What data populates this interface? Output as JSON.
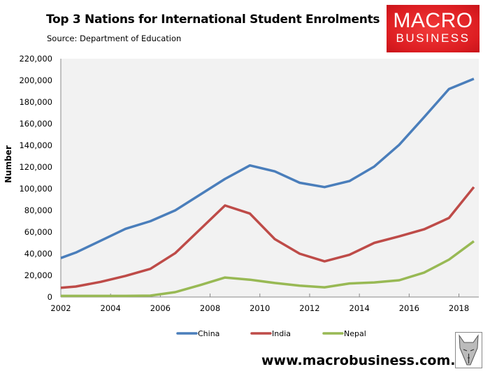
{
  "header": {
    "title": "Top 3 Nations for International Student Enrolments",
    "subtitle": "Source: Department of Education"
  },
  "logo": {
    "line1": "MACRO",
    "line2": "BUSINESS",
    "color": "#dd1e22"
  },
  "footer": {
    "website": "www.macrobusiness.com.au"
  },
  "chart_data": {
    "type": "line",
    "title": "Top 3 Nations for International Student Enrolments",
    "subtitle": "Source: Department of Education",
    "xlabel": "",
    "ylabel": "Number",
    "xlim": [
      2002,
      2018.8
    ],
    "ylim": [
      0,
      220000
    ],
    "xticks": [
      2002,
      2004,
      2006,
      2008,
      2010,
      2012,
      2014,
      2016,
      2018
    ],
    "yticks": [
      0,
      20000,
      40000,
      60000,
      80000,
      100000,
      120000,
      140000,
      160000,
      180000,
      200000,
      220000
    ],
    "ytick_labels": [
      "0",
      "20,000",
      "40,000",
      "60,000",
      "80,000",
      "100,000",
      "120,000",
      "140,000",
      "160,000",
      "180,000",
      "200,000",
      "220,000"
    ],
    "grid": false,
    "legend": "bottom",
    "x": [
      2002,
      2002.6,
      2003.6,
      2004.6,
      2005.6,
      2006.6,
      2007.6,
      2008.6,
      2009.6,
      2010.6,
      2011.6,
      2012.6,
      2013.6,
      2014.6,
      2015.6,
      2016.6,
      2017.6,
      2018.6
    ],
    "series": [
      {
        "name": "China",
        "color": "#4a7ebb",
        "values": [
          36000,
          41000,
          52000,
          63000,
          70000,
          80000,
          94500,
          109000,
          121500,
          116000,
          105500,
          101500,
          107000,
          120500,
          140500,
          166000,
          192000,
          201500
        ]
      },
      {
        "name": "India",
        "color": "#be4b48",
        "values": [
          8500,
          9700,
          14000,
          19500,
          26000,
          40500,
          62500,
          84500,
          77000,
          53500,
          40000,
          33000,
          39000,
          50000,
          56000,
          62500,
          73000,
          101500
        ]
      },
      {
        "name": "Nepal",
        "color": "#98b954",
        "values": [
          1000,
          1000,
          1000,
          1000,
          1300,
          4500,
          11000,
          18000,
          16000,
          13000,
          10500,
          9000,
          12500,
          13500,
          15500,
          22500,
          34500,
          51500
        ]
      }
    ]
  }
}
